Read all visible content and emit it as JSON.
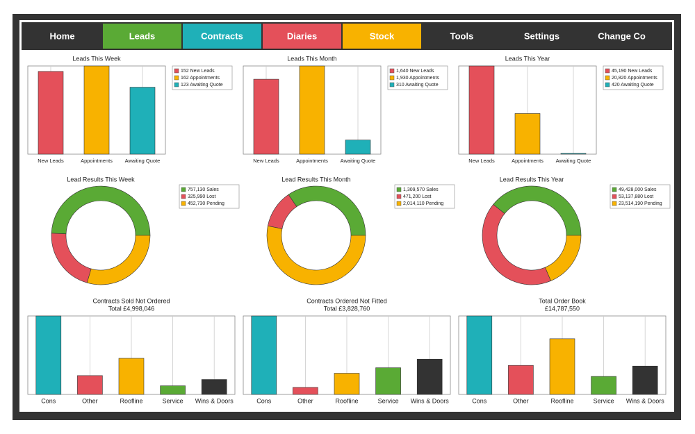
{
  "nav": [
    "Home",
    "Leads",
    "Contracts",
    "Diaries",
    "Stock",
    "Tools",
    "Settings",
    "Change Co"
  ],
  "chart_data": [
    {
      "type": "bar",
      "title": "Leads This Week",
      "categories": [
        "New Leads",
        "Appointments",
        "Awaiting Quote"
      ],
      "values": [
        152,
        162,
        123
      ],
      "value_labels": [
        "152 New Leads",
        "162 Appointments",
        "123 Awaiting Quote"
      ],
      "colors": [
        "#e4505a",
        "#f8b200",
        "#1fb0b8"
      ],
      "ylim": [
        0,
        162
      ],
      "grid": true
    },
    {
      "type": "bar",
      "title": "Leads This Month",
      "categories": [
        "New Leads",
        "Appointments",
        "Awaiting Quote"
      ],
      "values": [
        1640,
        1930,
        310
      ],
      "value_labels": [
        "1,640 New Leads",
        "1,930 Appointments",
        "310 Awaiting Quote"
      ],
      "colors": [
        "#e4505a",
        "#f8b200",
        "#1fb0b8"
      ],
      "ylim": [
        0,
        1930
      ],
      "grid": true
    },
    {
      "type": "bar",
      "title": "Leads This Year",
      "categories": [
        "New Leads",
        "Appointments",
        "Awaiting Quote"
      ],
      "values": [
        45190,
        20820,
        420
      ],
      "value_labels": [
        "45,190 New Leads",
        "20,820 Appointments",
        "420 Awaiting Quote"
      ],
      "colors": [
        "#e4505a",
        "#f8b200",
        "#1fb0b8"
      ],
      "ylim": [
        0,
        45190
      ],
      "grid": true
    },
    {
      "type": "donut",
      "title": "Lead Results This Week",
      "values": [
        757130,
        325990,
        452730
      ],
      "value_labels": [
        "757,130 Sales",
        "325,990 Lost",
        "452,730 Pending"
      ],
      "colors": [
        "#5aaa35",
        "#e4505a",
        "#f8b200"
      ]
    },
    {
      "type": "donut",
      "title": "Lead Results This Month",
      "values": [
        1309570,
        471200,
        2014110
      ],
      "value_labels": [
        "1,309,570 Sales",
        "471,200 Lost",
        "2,014,110 Pending"
      ],
      "colors": [
        "#5aaa35",
        "#e4505a",
        "#f8b200"
      ]
    },
    {
      "type": "donut",
      "title": "Lead Results This Year",
      "values": [
        49428000,
        53137880,
        23514190
      ],
      "value_labels": [
        "49,428,000 Sales",
        "53,137,880 Lost",
        "23,514,190 Pending"
      ],
      "colors": [
        "#5aaa35",
        "#e4505a",
        "#f8b200"
      ]
    },
    {
      "type": "bar",
      "title": "Contracts Sold Not Ordered",
      "subtitle": "Total £4,998,046",
      "categories": [
        "Cons",
        "Other",
        "Roofline",
        "Service",
        "Wins & Doors"
      ],
      "values": [
        2499000,
        600000,
        1150000,
        275000,
        475000
      ],
      "colors": [
        "#1fb0b8",
        "#e4505a",
        "#f8b200",
        "#5aaa35",
        "#333333"
      ],
      "ylim": [
        0,
        2499000
      ],
      "grid": true
    },
    {
      "type": "bar",
      "title": "Contracts Ordered Not Fitted",
      "subtitle": "Total £3,828,760",
      "categories": [
        "Cons",
        "Other",
        "Roofline",
        "Service",
        "Wins & Doors"
      ],
      "values": [
        1780000,
        160000,
        480000,
        605000,
        800000
      ],
      "colors": [
        "#1fb0b8",
        "#e4505a",
        "#f8b200",
        "#5aaa35",
        "#333333"
      ],
      "ylim": [
        0,
        1780000
      ],
      "grid": true
    },
    {
      "type": "bar",
      "title": "Total Order Book",
      "subtitle": "£14,787,550",
      "categories": [
        "Cons",
        "Other",
        "Roofline",
        "Service",
        "Wins & Doors"
      ],
      "values": [
        5540000,
        2050000,
        3930000,
        1270000,
        2000000
      ],
      "colors": [
        "#1fb0b8",
        "#e4505a",
        "#f8b200",
        "#5aaa35",
        "#333333"
      ],
      "ylim": [
        0,
        5540000
      ],
      "grid": true
    }
  ]
}
